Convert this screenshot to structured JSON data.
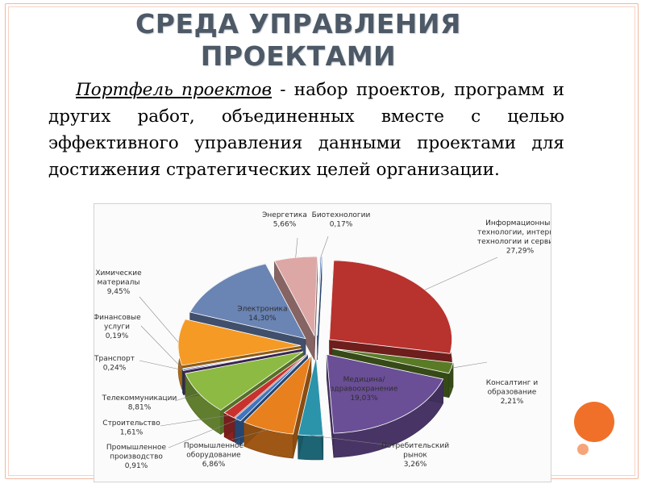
{
  "slide": {
    "title_line1": "СРЕДА УПРАВЛЕНИЯ",
    "title_line2": "ПРОЕКТАМИ",
    "definition_term": "Портфель проектов",
    "definition_text": " - набор проектов, программ и других работ, объединенных вместе с целью эффективного управления данными проектами для достижения стратегических целей организации."
  },
  "chart_data": {
    "type": "pie",
    "title": "",
    "slices": [
      {
        "label": "Информационные технологии, интернет технологии и сервисы",
        "value_label": "27,29%",
        "value": 27.29,
        "color": "#b8322e"
      },
      {
        "label": "Консалтинг и образование",
        "value_label": "2,21%",
        "value": 2.21,
        "color": "#5a7b26"
      },
      {
        "label": "Медицина/ здравоохранение",
        "value_label": "19,03%",
        "value": 19.03,
        "color": "#6a4e96"
      },
      {
        "label": "Потребительский рынок",
        "value_label": "3,26%",
        "value": 3.26,
        "color": "#2b93aa"
      },
      {
        "label": "Промышленное оборудование",
        "value_label": "6,86%",
        "value": 6.86,
        "color": "#e8801e"
      },
      {
        "label": "Промышленное производство",
        "value_label": "0,91%",
        "value": 0.91,
        "color": "#3f75bd"
      },
      {
        "label": "Строительство",
        "value_label": "1,61%",
        "value": 1.61,
        "color": "#c8322e"
      },
      {
        "label": "Телекоммуникации",
        "value_label": "8,81%",
        "value": 8.81,
        "color": "#8dba42"
      },
      {
        "label": "Транспорт",
        "value_label": "0,24%",
        "value": 0.24,
        "color": "#5d3f86"
      },
      {
        "label": "Финансовые услуги",
        "value_label": "0,19%",
        "value": 0.19,
        "color": "#1f87a8"
      },
      {
        "label": "Химические материалы",
        "value_label": "9,45%",
        "value": 9.45,
        "color": "#f59a25"
      },
      {
        "label": "Электроника",
        "value_label": "14,30%",
        "value": 14.3,
        "color": "#6a84b4"
      },
      {
        "label": "Энергетика",
        "value_label": "5,66%",
        "value": 5.66,
        "color": "#dda7a5"
      },
      {
        "label": "Биотехнологии",
        "value_label": "0,17%",
        "value": 0.17,
        "color": "#3f6fba"
      }
    ]
  }
}
